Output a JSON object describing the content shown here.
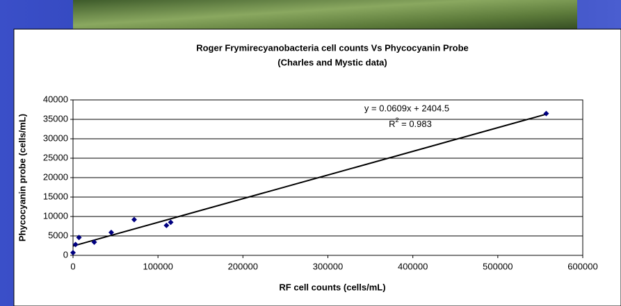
{
  "chart_data": {
    "type": "scatter",
    "title": [
      "Roger Frymirecyanobacteria cell counts Vs Phycocyanin Probe",
      "(Charles and Mystic data)"
    ],
    "x_label": "RF cell counts (cells/mL)",
    "y_label": "Phycocyanin probe (cells/mL)",
    "series": [
      {
        "color": "#000080",
        "x": [
          0,
          3000,
          7000,
          25000,
          45000,
          72000,
          110000,
          115000,
          557000
        ],
        "values": [
          700,
          2800,
          4600,
          3400,
          5900,
          9200,
          7700,
          8500,
          36500
        ]
      }
    ],
    "trendline": {
      "slope": 0.0609,
      "intercept": 2404.5,
      "equation": "y = 0.0609x + 2404.5",
      "r_squared": {
        "base": "R",
        "sup": "2",
        "rest": " = 0.983"
      }
    },
    "xlim": [
      0,
      600000
    ],
    "xticks": [
      0,
      100000,
      200000,
      300000,
      400000,
      500000,
      600000
    ],
    "ylim": [
      0,
      40000
    ],
    "yticks": [
      0,
      5000,
      10000,
      15000,
      20000,
      25000,
      30000,
      35000,
      40000
    ],
    "grid": true
  }
}
